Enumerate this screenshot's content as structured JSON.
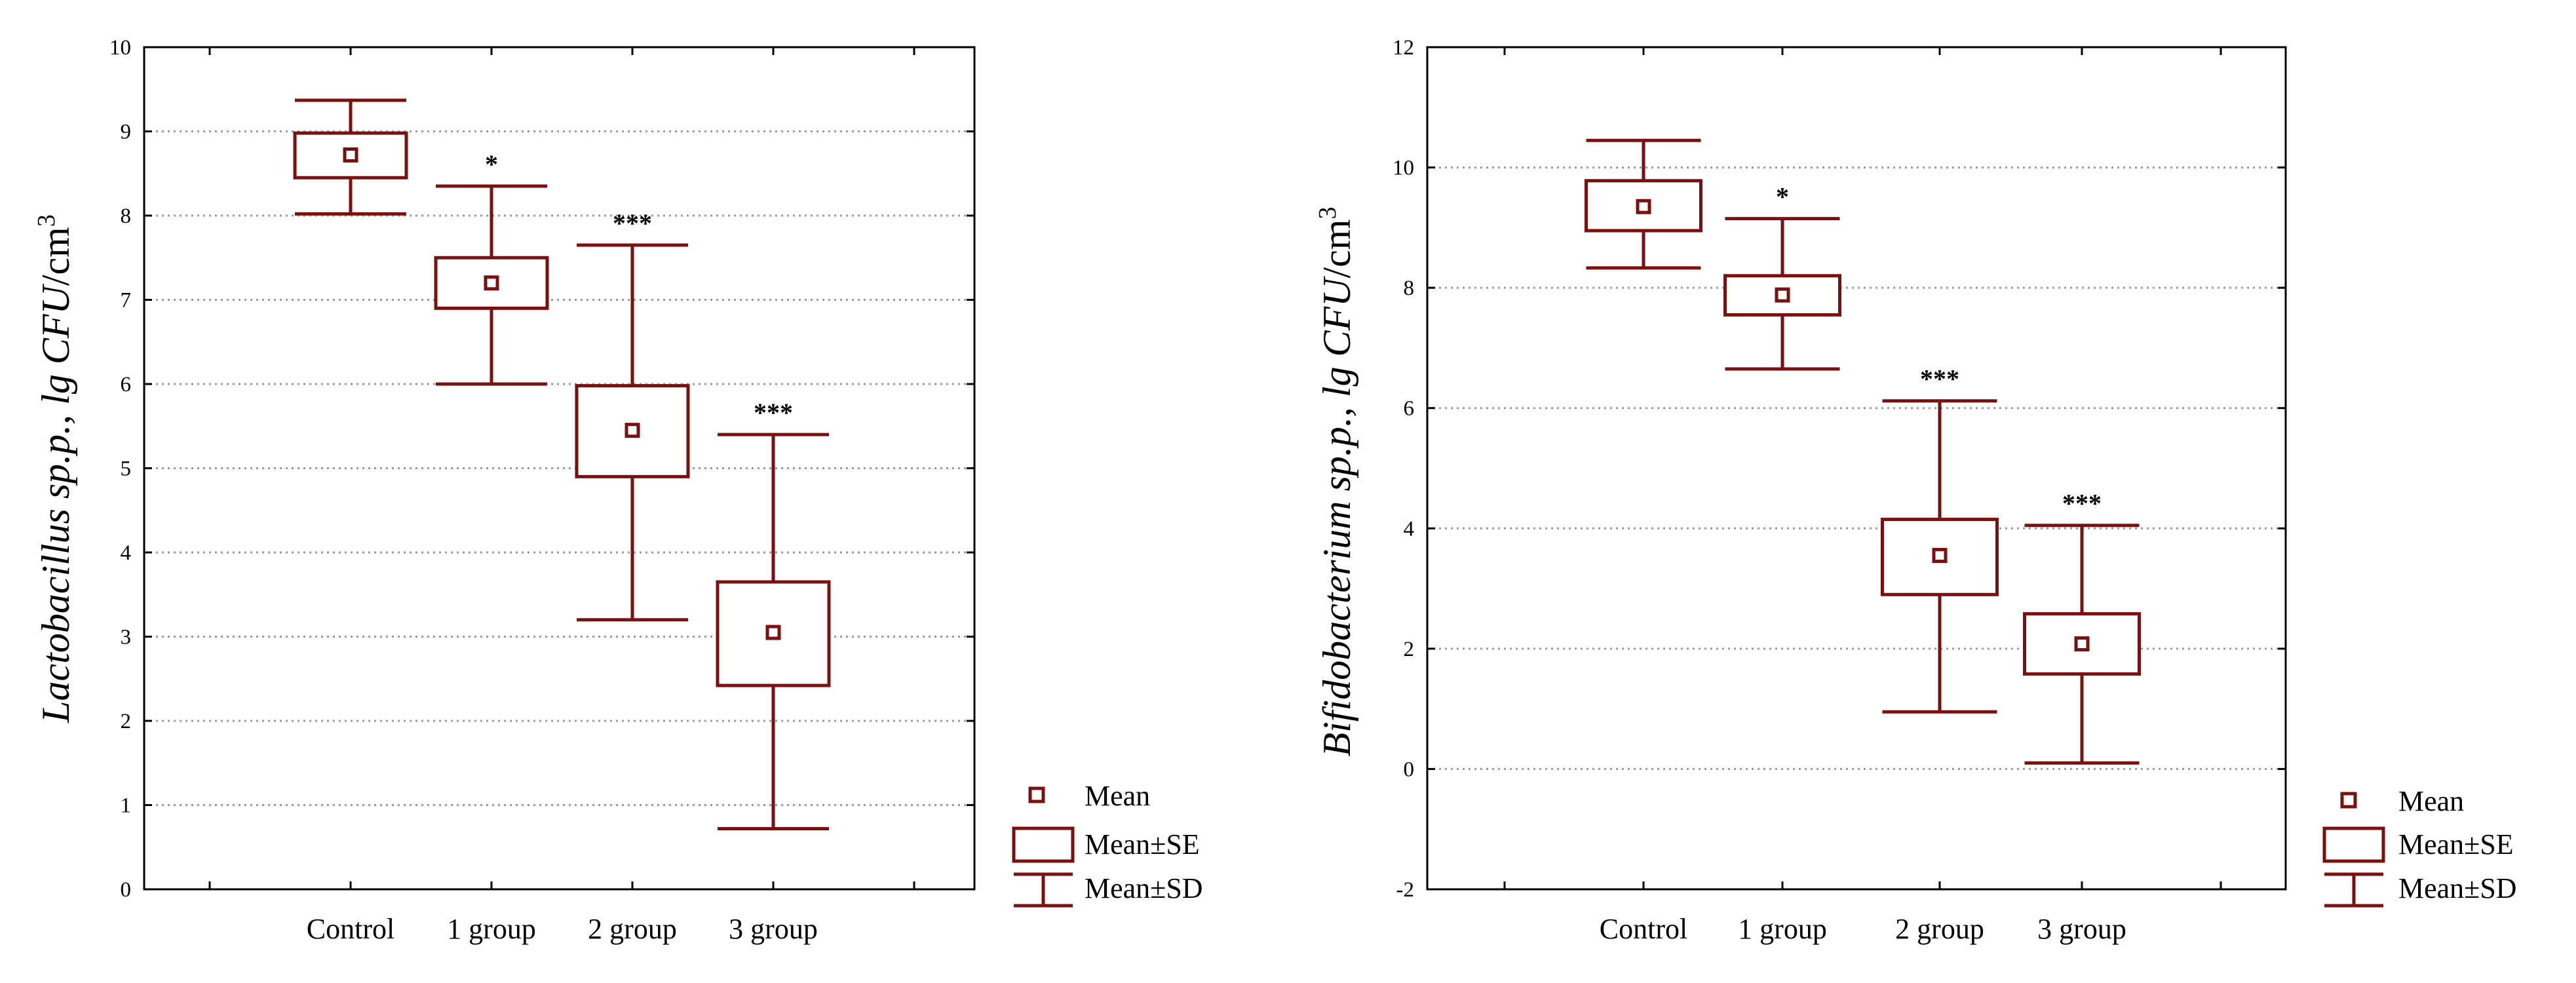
{
  "chart_data": [
    {
      "type": "boxplot",
      "ylabel_parts": [
        "Lactobacillus sp.p.",
        ", lg CFU",
        "/cm",
        "3"
      ],
      "ylim": [
        0,
        10
      ],
      "yticks": [
        "0",
        "1",
        "2",
        "3",
        "4",
        "5",
        "6",
        "7",
        "8",
        "9",
        "10"
      ],
      "categories": [
        "Control",
        "1 group",
        "2 group",
        "3 group"
      ],
      "series": [
        {
          "name": "Control",
          "mean": 8.72,
          "se_low": 8.45,
          "se_high": 8.98,
          "sd_low": 8.02,
          "sd_high": 9.37,
          "annotation": ""
        },
        {
          "name": "1 group",
          "mean": 7.2,
          "se_low": 6.9,
          "se_high": 7.5,
          "sd_low": 6.0,
          "sd_high": 8.35,
          "annotation": "*"
        },
        {
          "name": "2 group",
          "mean": 5.45,
          "se_low": 4.9,
          "se_high": 5.98,
          "sd_low": 3.2,
          "sd_high": 7.65,
          "annotation": "***"
        },
        {
          "name": "3 group",
          "mean": 3.05,
          "se_low": 2.42,
          "se_high": 3.65,
          "sd_low": 0.72,
          "sd_high": 5.4,
          "annotation": "***"
        }
      ]
    },
    {
      "type": "boxplot",
      "ylabel_parts": [
        "Bifidobacterium sp.p.",
        ", lg CFU",
        "/cm",
        "3"
      ],
      "ylim": [
        -2,
        12
      ],
      "yticks": [
        "-2",
        "0",
        "2",
        "4",
        "6",
        "8",
        "10",
        "12"
      ],
      "categories": [
        "Control",
        "1 group",
        "2 group",
        "3 group"
      ],
      "series": [
        {
          "name": "Control",
          "mean": 9.35,
          "se_low": 8.95,
          "se_high": 9.78,
          "sd_low": 8.33,
          "sd_high": 10.45,
          "annotation": ""
        },
        {
          "name": "1 group",
          "mean": 7.88,
          "se_low": 7.55,
          "se_high": 8.2,
          "sd_low": 6.65,
          "sd_high": 9.15,
          "annotation": "*"
        },
        {
          "name": "2 group",
          "mean": 3.55,
          "se_low": 2.9,
          "se_high": 4.15,
          "sd_low": 0.95,
          "sd_high": 6.12,
          "annotation": "***"
        },
        {
          "name": "3 group",
          "mean": 2.08,
          "se_low": 1.58,
          "se_high": 2.58,
          "sd_low": 0.1,
          "sd_high": 4.05,
          "annotation": "***"
        }
      ]
    }
  ],
  "legend": {
    "mean": "Mean",
    "se": "Mean±SE",
    "sd": "Mean±SD"
  },
  "colors": {
    "series": "#7a1010",
    "grid": "#9a9a9a",
    "axis": "#000000"
  }
}
